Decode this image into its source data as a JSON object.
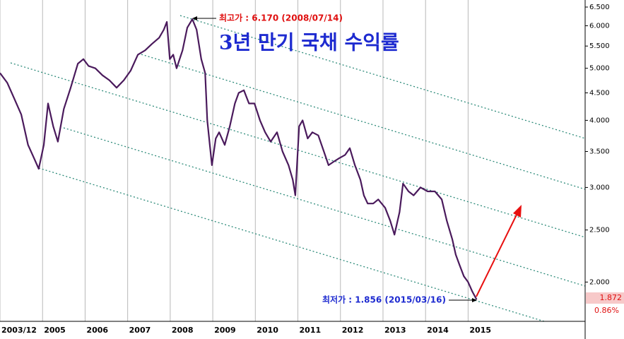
{
  "chart_data": {
    "type": "line",
    "title": "3년 만기 국채 수익률",
    "log_y": true,
    "color": "#4a1a5c",
    "x": [
      2004.0,
      2004.17,
      2004.33,
      2004.5,
      2004.66,
      2004.8,
      2004.91,
      2005.03,
      2005.13,
      2005.25,
      2005.36,
      2005.5,
      2005.66,
      2005.83,
      2005.96,
      2006.08,
      2006.24,
      2006.41,
      2006.57,
      2006.74,
      2006.91,
      2007.07,
      2007.24,
      2007.41,
      2007.57,
      2007.74,
      2007.85,
      2007.92,
      2007.99,
      2008.07,
      2008.15,
      2008.29,
      2008.4,
      2008.52,
      2008.62,
      2008.73,
      2008.82,
      2008.87,
      2008.93,
      2008.98,
      2009.07,
      2009.15,
      2009.28,
      2009.4,
      2009.52,
      2009.61,
      2009.73,
      2009.85,
      2009.98,
      2010.11,
      2010.23,
      2010.36,
      2010.51,
      2010.64,
      2010.78,
      2010.88,
      2010.94,
      2011.03,
      2011.11,
      2011.23,
      2011.34,
      2011.48,
      2011.61,
      2011.72,
      2011.84,
      2011.97,
      2012.11,
      2012.22,
      2012.34,
      2012.47,
      2012.55,
      2012.64,
      2012.77,
      2012.89,
      2013.05,
      2013.17,
      2013.27,
      2013.39,
      2013.47,
      2013.6,
      2013.72,
      2013.88,
      2014.05,
      2014.22,
      2014.38,
      2014.5,
      2014.63,
      2014.71,
      2014.8,
      2014.9,
      2015.0,
      2015.1,
      2015.2
    ],
    "values": [
      4.9,
      4.7,
      4.4,
      4.1,
      3.6,
      3.4,
      3.25,
      3.6,
      4.3,
      3.9,
      3.65,
      4.2,
      4.6,
      5.1,
      5.2,
      5.05,
      5.0,
      4.85,
      4.75,
      4.6,
      4.75,
      4.95,
      5.3,
      5.4,
      5.55,
      5.7,
      5.9,
      6.1,
      5.2,
      5.3,
      5.0,
      5.4,
      5.95,
      6.17,
      5.9,
      5.2,
      4.9,
      4.0,
      3.6,
      3.3,
      3.7,
      3.8,
      3.6,
      3.9,
      4.3,
      4.5,
      4.55,
      4.3,
      4.3,
      4.0,
      3.8,
      3.65,
      3.8,
      3.5,
      3.3,
      3.1,
      2.9,
      3.9,
      4.0,
      3.7,
      3.8,
      3.75,
      3.5,
      3.3,
      3.35,
      3.4,
      3.45,
      3.55,
      3.3,
      3.1,
      2.9,
      2.8,
      2.8,
      2.85,
      2.75,
      2.6,
      2.45,
      2.7,
      3.05,
      2.95,
      2.9,
      3.0,
      2.95,
      2.95,
      2.85,
      2.6,
      2.4,
      2.25,
      2.15,
      2.05,
      2.0,
      1.92,
      1.856
    ],
    "xlim": [
      2004.0,
      2017.75
    ],
    "ylim": [
      1.69,
      6.7
    ],
    "xticks": [
      {
        "value": 2004.0,
        "label": "2003/12"
      },
      2005,
      2006,
      2007,
      2008,
      2009,
      2010,
      2011,
      2012,
      2013,
      2014,
      2015
    ],
    "yticks": [
      {
        "value": 6.5,
        "label": "6.500"
      },
      {
        "value": 6.0,
        "label": "6.000"
      },
      {
        "value": 5.5,
        "label": "5.500"
      },
      {
        "value": 5.0,
        "label": "5.000"
      },
      {
        "value": 4.5,
        "label": "4.500"
      },
      {
        "value": 4.0,
        "label": "4.000"
      },
      {
        "value": 3.5,
        "label": "3.500"
      },
      {
        "value": 3.0,
        "label": "3.000"
      },
      {
        "value": 2.5,
        "label": "2.500"
      },
      {
        "value": 2.0,
        "label": "2.000"
      }
    ],
    "grid": true,
    "annotations": {
      "high": "최고가 : 6.170 (2008/07/14)",
      "low": "최저가 : 1.856 (2015/03/16)",
      "last_price": "1.872",
      "change": "0.86%"
    }
  }
}
